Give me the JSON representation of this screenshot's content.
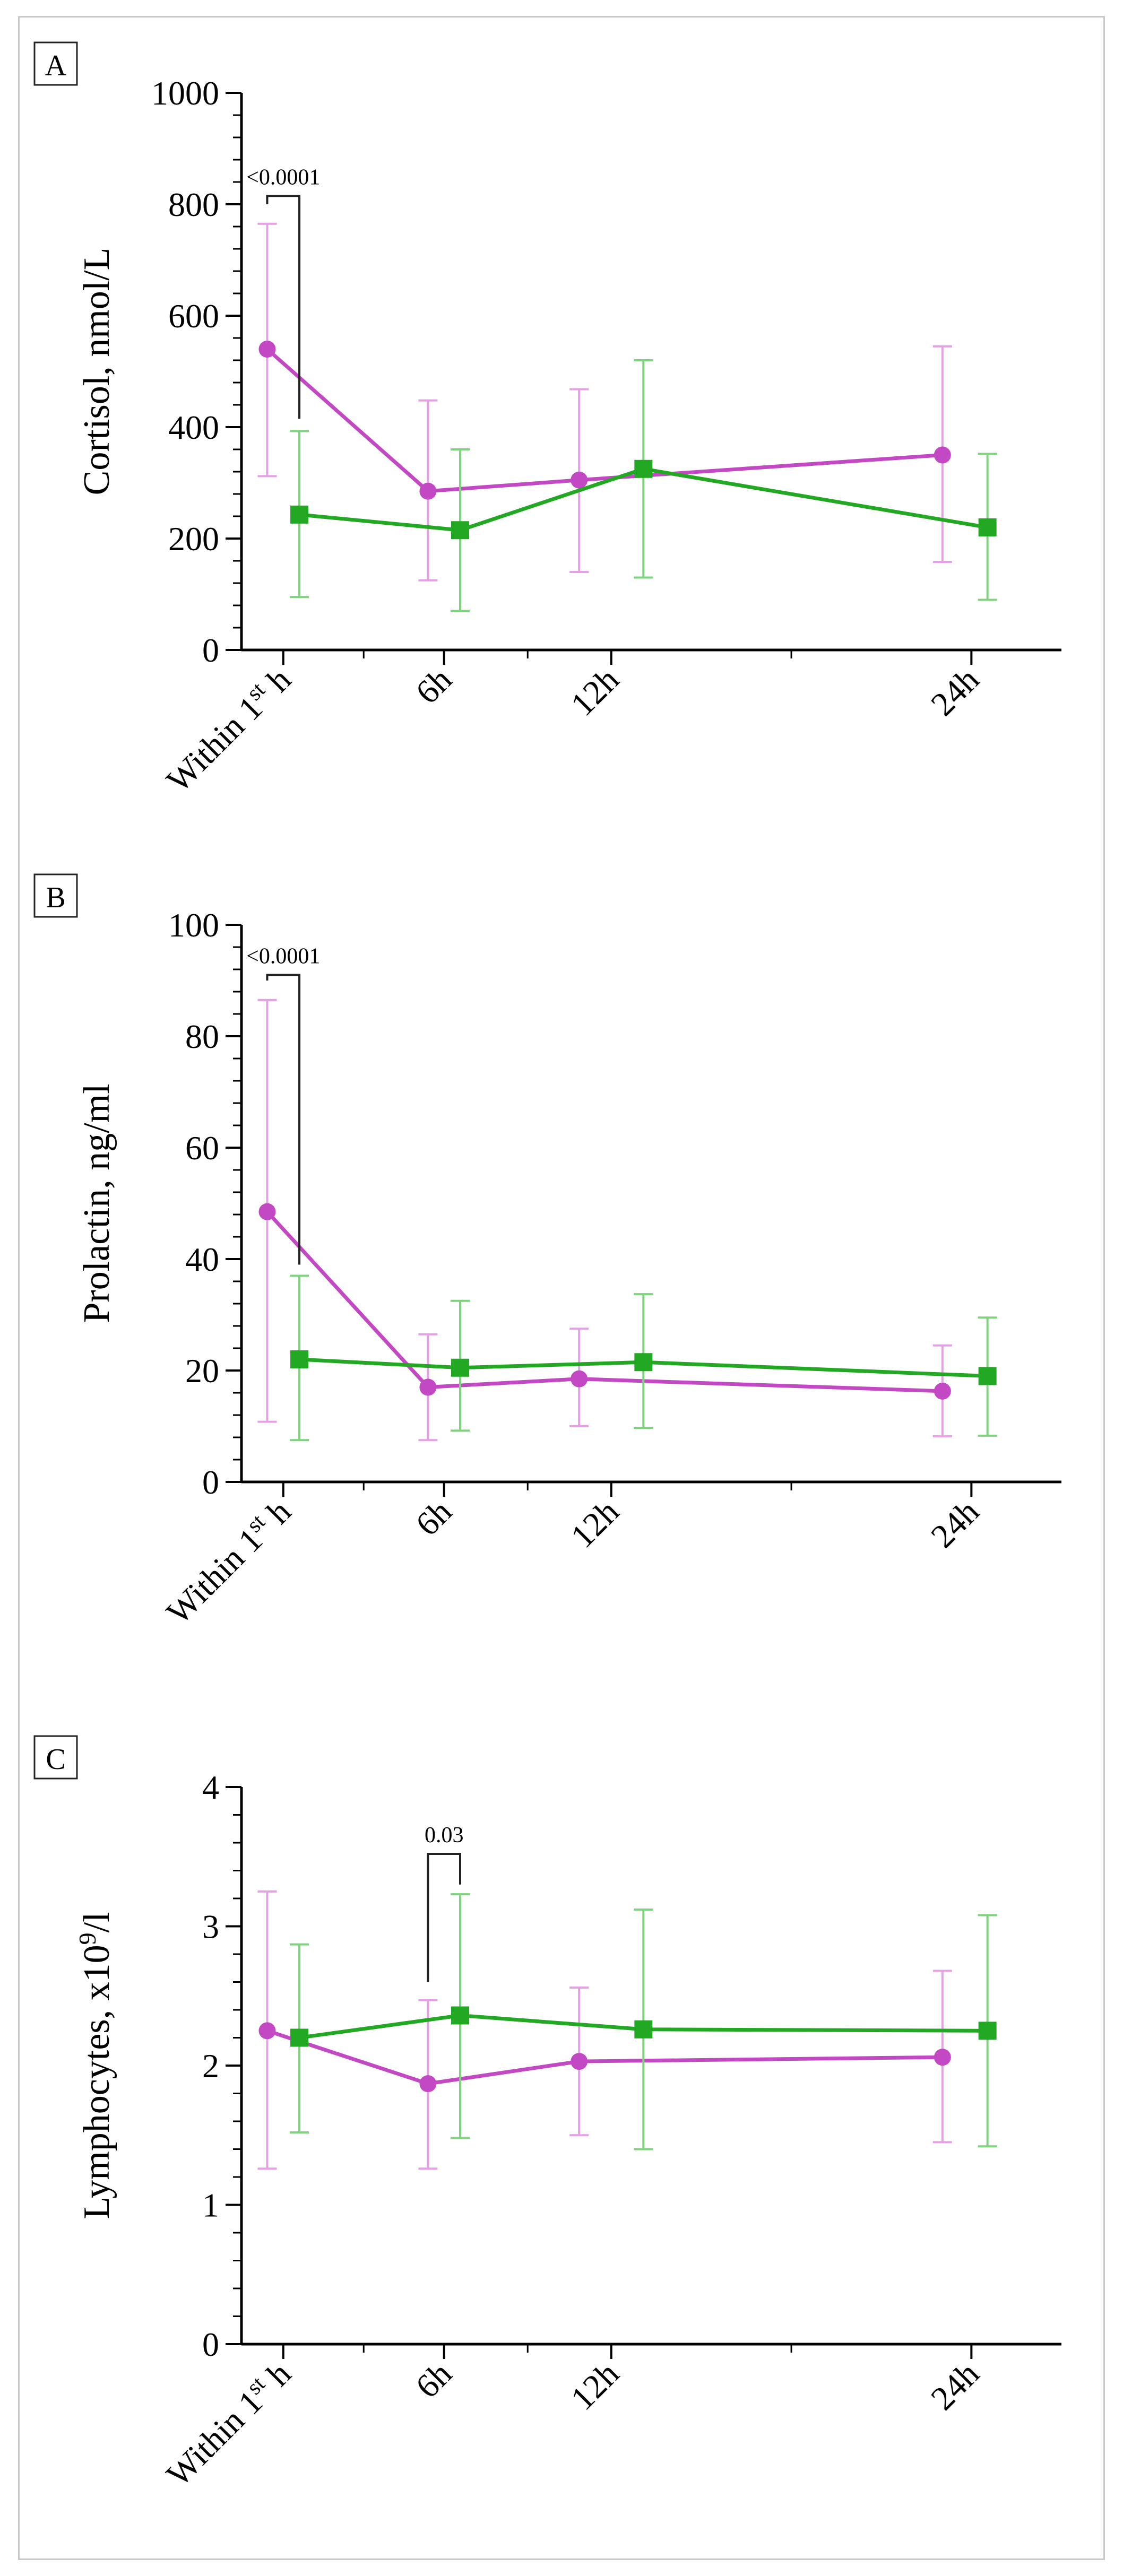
{
  "colors": {
    "group1": "#c348c3",
    "group1_err": "#e6a0e6",
    "group2": "#23a823",
    "group2_err": "#7fd37f"
  },
  "icons": {
    "group1_marker": "circle",
    "group2_marker": "square"
  },
  "chart_data": [
    {
      "type": "line",
      "panel_label": "A",
      "ylabel": "Cortisol, nmol/L",
      "ylim": [
        0,
        1000
      ],
      "yticks": [
        0,
        200,
        400,
        600,
        800,
        1000
      ],
      "xlim": [
        0,
        25.5
      ],
      "x_ticks": [
        {
          "x": 1.3,
          "label": "Within 1",
          "sup": "st",
          "suffix": " h"
        },
        {
          "x": 6.3,
          "label": "6h"
        },
        {
          "x": 11.5,
          "label": "12h"
        },
        {
          "x": 22.7,
          "label": "24h"
        }
      ],
      "minor_x_ticks": [
        3.8,
        8.9,
        17.1
      ],
      "grid": false,
      "series": [
        {
          "marker": "circle",
          "x": [
            0.8,
            5.8,
            10.5,
            21.8
          ],
          "y": [
            540,
            285,
            305,
            350
          ],
          "err_high": [
            765,
            448,
            468,
            545
          ],
          "err_low": [
            312,
            125,
            140,
            158
          ]
        },
        {
          "marker": "square",
          "x": [
            1.8,
            6.8,
            12.5,
            23.2
          ],
          "y": [
            243,
            215,
            325,
            220
          ],
          "err_high": [
            393,
            360,
            520,
            352
          ],
          "err_low": [
            95,
            70,
            130,
            90
          ]
        }
      ],
      "annotations": [
        {
          "text": "<0.0001",
          "x1": 0.8,
          "x2": 1.8,
          "y_top": 815,
          "y_bottom_left": 800,
          "y_bottom_right": 415
        }
      ]
    },
    {
      "type": "line",
      "panel_label": "B",
      "ylabel": "Prolactin, ng/ml",
      "ylim": [
        0,
        100
      ],
      "yticks": [
        0,
        20,
        40,
        60,
        80,
        100
      ],
      "xlim": [
        0,
        25.5
      ],
      "x_ticks": [
        {
          "x": 1.3,
          "label": "Within 1",
          "sup": "st",
          "suffix": " h"
        },
        {
          "x": 6.3,
          "label": "6h"
        },
        {
          "x": 11.5,
          "label": "12h"
        },
        {
          "x": 22.7,
          "label": "24h"
        }
      ],
      "minor_x_ticks": [
        3.8,
        8.9,
        17.1
      ],
      "grid": false,
      "series": [
        {
          "marker": "circle",
          "x": [
            0.8,
            5.8,
            10.5,
            21.8
          ],
          "y": [
            48.5,
            17,
            18.5,
            16.3
          ],
          "err_high": [
            86.5,
            26.5,
            27.5,
            24.5
          ],
          "err_low": [
            10.8,
            7.5,
            10,
            8.2
          ]
        },
        {
          "marker": "square",
          "x": [
            1.8,
            6.8,
            12.5,
            23.2
          ],
          "y": [
            22,
            20.5,
            21.5,
            19
          ],
          "err_high": [
            37,
            32.5,
            33.7,
            29.5
          ],
          "err_low": [
            7.5,
            9.2,
            9.7,
            8.3
          ]
        }
      ],
      "annotations": [
        {
          "text": "<0.0001",
          "x1": 0.8,
          "x2": 1.8,
          "y_top": 91,
          "y_bottom_left": 90,
          "y_bottom_right": 39
        }
      ]
    },
    {
      "type": "line",
      "panel_label": "C",
      "ylabel": "Lymphocytes, x10",
      "ylabel_sup": "9",
      "ylabel_suffix": "/l",
      "ylim": [
        0,
        4
      ],
      "yticks": [
        0,
        1,
        2,
        3,
        4
      ],
      "xlim": [
        0,
        25.5
      ],
      "x_ticks": [
        {
          "x": 1.3,
          "label": "Within 1",
          "sup": "st",
          "suffix": " h"
        },
        {
          "x": 6.3,
          "label": "6h"
        },
        {
          "x": 11.5,
          "label": "12h"
        },
        {
          "x": 22.7,
          "label": "24h"
        }
      ],
      "minor_x_ticks": [
        3.8,
        8.9,
        17.1
      ],
      "grid": false,
      "series": [
        {
          "marker": "circle",
          "x": [
            0.8,
            5.8,
            10.5,
            21.8
          ],
          "y": [
            2.25,
            1.87,
            2.03,
            2.06
          ],
          "err_high": [
            3.25,
            2.47,
            2.56,
            2.68
          ],
          "err_low": [
            1.26,
            1.26,
            1.5,
            1.45
          ]
        },
        {
          "marker": "square",
          "x": [
            1.8,
            6.8,
            12.5,
            23.2
          ],
          "y": [
            2.2,
            2.36,
            2.26,
            2.25
          ],
          "err_high": [
            2.87,
            3.23,
            3.12,
            3.08
          ],
          "err_low": [
            1.52,
            1.48,
            1.4,
            1.42
          ]
        }
      ],
      "annotations": [
        {
          "text": "0.03",
          "x1": 5.8,
          "x2": 6.8,
          "y_top": 3.52,
          "y_bottom_left": 2.6,
          "y_bottom_right": 3.3
        }
      ]
    }
  ]
}
